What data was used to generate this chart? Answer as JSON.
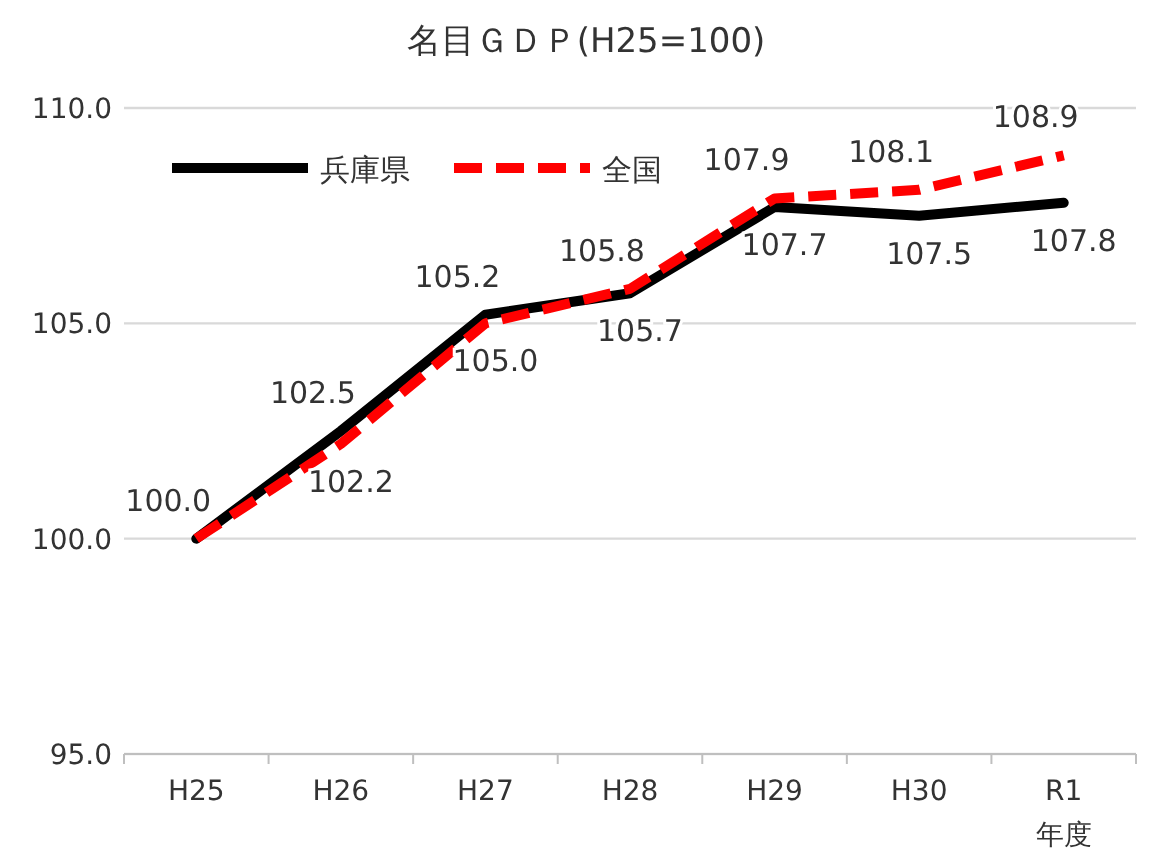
{
  "chart_data": {
    "type": "line",
    "title": "名目ＧＤＰ(H25=100)",
    "xlabel": "年度",
    "categories": [
      "H25",
      "H26",
      "H27",
      "H28",
      "H29",
      "H30",
      "R1"
    ],
    "series": [
      {
        "name": "兵庫県",
        "color": "#000000",
        "line_style": "solid",
        "values": [
          100.0,
          102.5,
          105.2,
          105.7,
          107.7,
          107.5,
          107.8
        ],
        "value_labels": [
          "100.0",
          "102.5",
          "105.2",
          "105.7",
          "107.7",
          "107.5",
          "107.8"
        ]
      },
      {
        "name": "全国",
        "color": "#ff0000",
        "line_style": "dashed",
        "values": [
          100.0,
          102.2,
          105.0,
          105.8,
          107.9,
          108.1,
          108.9
        ],
        "value_labels": [
          null,
          "102.2",
          "105.0",
          "105.8",
          "107.9",
          "108.1",
          "108.9"
        ]
      }
    ],
    "ylim": [
      95,
      110
    ],
    "yticks": [
      {
        "value": 95,
        "label": "95.0"
      },
      {
        "value": 100,
        "label": "100.0"
      },
      {
        "value": 105,
        "label": "105.0"
      },
      {
        "value": 110,
        "label": "110.0"
      }
    ],
    "grid": "y",
    "legend": "top left",
    "marker": "none"
  }
}
